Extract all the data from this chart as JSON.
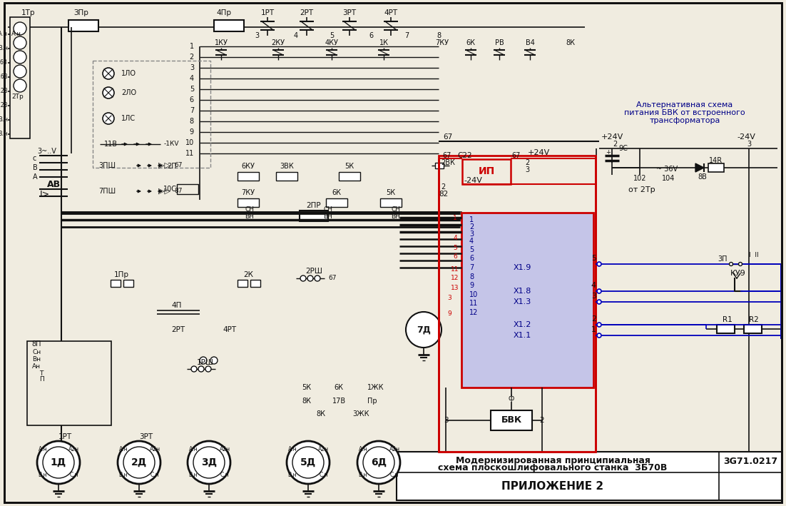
{
  "title_line1": "Модернизированная принципиальная",
  "title_line2": "схема плоскошлифовального станка  3Б70В",
  "doc_number": "3G71.0217",
  "appendix": "ПРИЛОЖЕНИЕ 2",
  "alt_text_line1": "Альтернативная схема",
  "alt_text_line2": "питания БВК от встроенного",
  "alt_text_line3": "трансформатора",
  "bg_color": "#f0ece0",
  "line_color": "#111111",
  "red_color": "#cc0000",
  "blue_color": "#0000bb",
  "block_fill": "#c5c5e8",
  "white": "#ffffff"
}
